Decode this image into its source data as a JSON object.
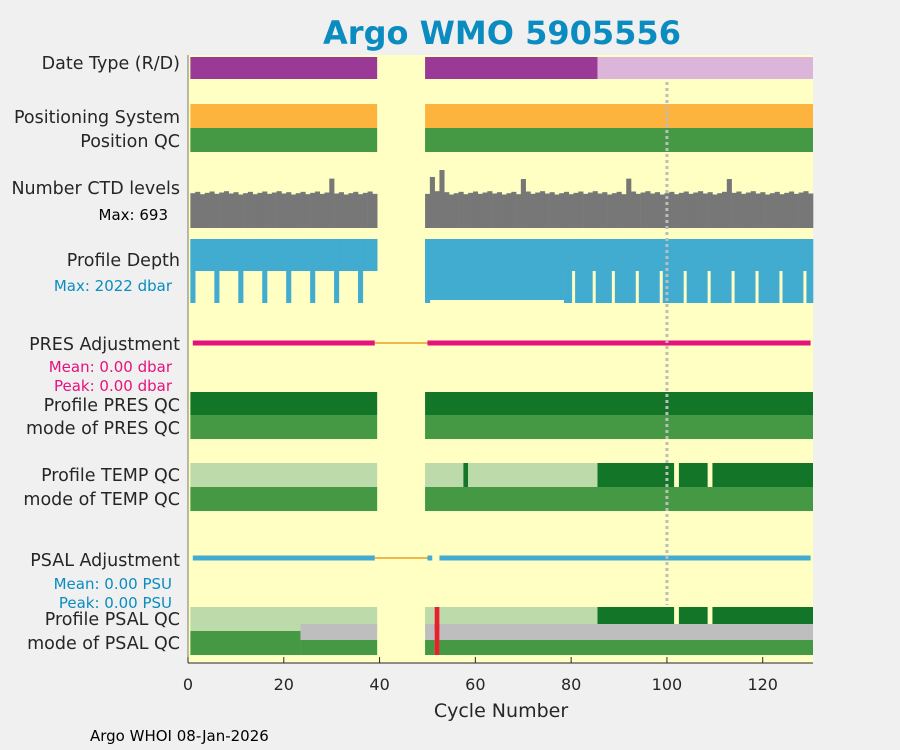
{
  "chart_data": {
    "type": "bar",
    "title": "Argo WMO 5905556",
    "xlabel": "Cycle Number",
    "xlim": [
      0,
      130.5
    ],
    "xticks": [
      0,
      20,
      40,
      60,
      80,
      100,
      120
    ],
    "footer": "Argo WHOI 08-Jan-2026",
    "colors": {
      "background": "#ffffc4",
      "figure": "#f0f0f0",
      "title": "#0a8cc0",
      "realtime": "#9b3a96",
      "delayed": "#dcb5da",
      "positioning": "#fdb43f",
      "qc_good": "#459844",
      "qc_dark": "#137528",
      "qc_light": "#bddaab",
      "qc_bad": "#e8202e",
      "qc_missing": "#bebebe",
      "ctd": "#777777",
      "depth": "#41abd0",
      "pres_adj": "#e5127b",
      "psal_adj": "#41abd0",
      "gap_line": "#f0b54b",
      "ref_line": "#bdbdbd",
      "mean_pres_text": "#e5127b",
      "mean_psal_text": "#0a8cc0"
    },
    "gap_cycles": [
      40,
      49
    ],
    "reference_cycle": 100,
    "rows": {
      "date_type": {
        "label": "Date Type (R/D)",
        "segments": [
          {
            "from": 0.5,
            "to": 39.5,
            "status": "R"
          },
          {
            "from": 49.5,
            "to": 85.5,
            "status": "R"
          },
          {
            "from": 85.5,
            "to": 130.5,
            "status": "D"
          }
        ]
      },
      "positioning_system": {
        "label": "Positioning System",
        "segments": [
          {
            "from": 0.5,
            "to": 39.5
          },
          {
            "from": 49.5,
            "to": 130.5
          }
        ]
      },
      "position_qc": {
        "label": "Position QC",
        "segments": [
          {
            "from": 0.5,
            "to": 39.5
          },
          {
            "from": 49.5,
            "to": 130.5
          }
        ]
      },
      "ctd_levels": {
        "label": "Number CTD levels",
        "max_label": "Max: 693",
        "max_value": 693,
        "base_value": 420,
        "spikes": [
          {
            "cycle": 30,
            "value": 590
          },
          {
            "cycle": 53,
            "value": 693
          },
          {
            "cycle": 51,
            "value": 610
          },
          {
            "cycle": 70,
            "value": 585
          },
          {
            "cycle": 92,
            "value": 590
          },
          {
            "cycle": 113,
            "value": 585
          }
        ]
      },
      "profile_depth": {
        "label": "Profile Depth",
        "max_label": "Max: 2022 dbar",
        "max_value": 2022,
        "short_cycles": [
          1,
          2,
          3,
          4,
          5,
          6,
          7,
          8,
          9,
          10,
          11,
          12,
          13,
          14,
          15,
          16,
          17,
          18,
          19,
          20,
          21,
          22,
          23,
          24,
          25,
          26,
          27,
          28,
          29,
          30,
          31,
          32,
          33,
          34,
          35,
          36,
          37,
          38,
          39,
          50,
          51,
          52,
          53,
          54,
          55,
          56,
          57,
          58,
          59,
          60,
          61,
          62,
          63,
          64,
          65,
          66,
          67,
          68,
          69,
          70,
          71,
          72,
          73,
          74,
          75,
          76,
          77,
          78
        ],
        "deep_cycles": [
          1,
          6,
          11,
          16,
          21,
          26,
          31,
          36,
          50,
          79,
          82,
          86,
          91,
          96,
          101,
          106,
          111,
          116,
          121,
          126
        ],
        "shallow_fraction": 0.47
      },
      "pres_adjustment": {
        "label": "PRES Adjustment",
        "mean_label": "Mean: 0.00 dbar",
        "peak_label": "Peak: 0.00 dbar",
        "mean": 0.0,
        "peak": 0.0
      },
      "profile_pres_qc": {
        "label": "Profile PRES QC",
        "segments": [
          {
            "from": 0.5,
            "to": 39.5,
            "flag": "A"
          },
          {
            "from": 49.5,
            "to": 130.5,
            "flag": "A"
          }
        ]
      },
      "mode_pres_qc": {
        "label": "mode of PRES QC",
        "segments": [
          {
            "from": 0.5,
            "to": 39.5,
            "flag": "1"
          },
          {
            "from": 49.5,
            "to": 130.5,
            "flag": "1"
          }
        ]
      },
      "profile_temp_qc": {
        "label": "Profile TEMP QC",
        "segments": [
          {
            "from": 0.5,
            "to": 39.5,
            "flag": "light"
          },
          {
            "from": 49.5,
            "to": 57.5,
            "flag": "light"
          },
          {
            "from": 57.5,
            "to": 58.5,
            "flag": "dark"
          },
          {
            "from": 58.5,
            "to": 85.5,
            "flag": "light"
          },
          {
            "from": 85.5,
            "to": 101.5,
            "flag": "dark"
          },
          {
            "from": 102.5,
            "to": 108.5,
            "flag": "dark"
          },
          {
            "from": 109.5,
            "to": 130.5,
            "flag": "dark"
          }
        ]
      },
      "mode_temp_qc": {
        "label": "mode of TEMP QC",
        "segments": [
          {
            "from": 0.5,
            "to": 39.5
          },
          {
            "from": 49.5,
            "to": 130.5
          }
        ]
      },
      "psal_adjustment": {
        "label": "PSAL Adjustment",
        "mean_label": "Mean: 0.00 PSU",
        "peak_label": "Peak: 0.00 PSU",
        "mean": 0.0,
        "peak": 0.0
      },
      "profile_psal_qc": {
        "label": "Profile PSAL QC",
        "segments": [
          {
            "from": 0.5,
            "to": 39.5,
            "flag": "light"
          },
          {
            "from": 49.5,
            "to": 51.5,
            "flag": "light"
          },
          {
            "from": 51.5,
            "to": 52.5,
            "flag": "bad"
          },
          {
            "from": 52.5,
            "to": 85.5,
            "flag": "light"
          },
          {
            "from": 85.5,
            "to": 101.5,
            "flag": "dark"
          },
          {
            "from": 102.5,
            "to": 108.5,
            "flag": "dark"
          },
          {
            "from": 109.5,
            "to": 130.5,
            "flag": "dark"
          }
        ]
      },
      "mode_psal_qc": {
        "label": "mode of PSAL QC",
        "segments": [
          {
            "from": 0.5,
            "to": 23.5,
            "flag": "good"
          },
          {
            "from": 23.5,
            "to": 39.5,
            "flag": "mixed"
          },
          {
            "from": 49.5,
            "to": 51.5,
            "flag": "mixed"
          },
          {
            "from": 51.5,
            "to": 52.5,
            "flag": "badmixed"
          },
          {
            "from": 52.5,
            "to": 130.5,
            "flag": "mixed"
          }
        ]
      }
    }
  }
}
